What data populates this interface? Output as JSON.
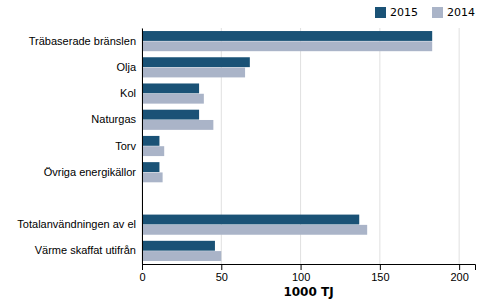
{
  "chart_data": {
    "type": "bar",
    "orientation": "horizontal",
    "categories": [
      "Värme skaffat utifrån",
      "Totalanvändningen av el",
      null,
      "Övriga energikällor",
      "Torv",
      "Naturgas",
      "Kol",
      "Olja",
      "Träbaserade bränslen"
    ],
    "series": [
      {
        "name": "2015",
        "color": "#1a5276",
        "values": [
          46,
          137,
          0,
          11,
          11,
          36,
          36,
          68,
          183
        ]
      },
      {
        "name": "2014",
        "color": "#aab4c8",
        "values": [
          50,
          142,
          0,
          13,
          14,
          45,
          39,
          65,
          183
        ]
      }
    ],
    "x_label": "1000 TJ",
    "xlim": [
      0,
      210
    ],
    "xticks": [
      0,
      50,
      100,
      150,
      200
    ],
    "grid": true,
    "legend": "upper right"
  }
}
